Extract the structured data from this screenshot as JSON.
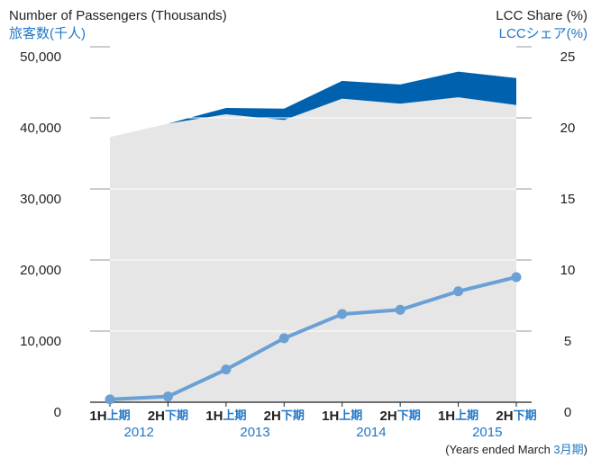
{
  "chart_data": {
    "type": "stacked_area_line",
    "ylabel": "Number of Passengers (Thousands)",
    "ylabel_ja": "旅客数(千人)",
    "y2label": "LCC Share (%)",
    "y2label_ja": "LCCシェア(%)",
    "categories": [
      "1H",
      "2H",
      "1H",
      "2H",
      "1H",
      "2H",
      "1H",
      "2H"
    ],
    "categories_ja": [
      "上期",
      "下期",
      "上期",
      "下期",
      "上期",
      "下期",
      "上期",
      "下期"
    ],
    "years": [
      "2012",
      "2013",
      "2014",
      "2015"
    ],
    "xlabel_parts": [
      "(Years ended March ",
      "3月期",
      ")"
    ],
    "series": [
      {
        "color": "#e6e6e6",
        "values": [
          37300,
          39200,
          40500,
          39700,
          42700,
          42000,
          42900,
          41800
        ]
      },
      {
        "color": "#0062ae",
        "values": [
          0,
          0,
          900,
          1600,
          2500,
          2700,
          3600,
          3800
        ]
      },
      {
        "color": "#6aa0d6",
        "axis": "y2",
        "values": [
          0.2,
          0.4,
          2.3,
          4.5,
          6.2,
          6.5,
          7.8,
          8.8
        ]
      }
    ],
    "ylim": [
      0,
      50000
    ],
    "yticks": [
      0,
      {
        "value": 10000,
        "label": "10,000"
      },
      {
        "value": 20000,
        "label": "20,000"
      },
      {
        "value": 30000,
        "label": "30,000"
      },
      {
        "value": 40000,
        "label": "40,000"
      },
      {
        "value": 50000,
        "label": "50,000"
      }
    ],
    "y2lim": [
      0,
      25
    ],
    "y2ticks": [
      0,
      5,
      10,
      15,
      20,
      25
    ],
    "grid": true
  }
}
